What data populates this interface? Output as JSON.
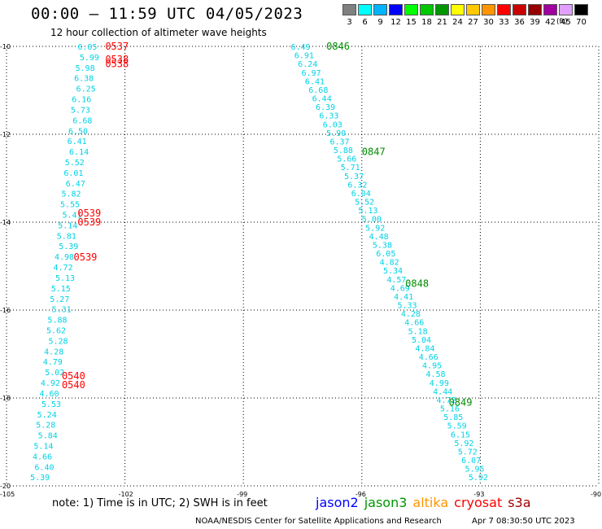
{
  "title": "00:00 — 11:59 UTC 04/05/2023",
  "subtitle": "12 hour collection of altimeter wave heights",
  "colorbar": {
    "unit": "(ft)",
    "stops": [
      {
        "label": "3",
        "color": "#808080"
      },
      {
        "label": "6",
        "color": "#00ffff"
      },
      {
        "label": "9",
        "color": "#00b4ff"
      },
      {
        "label": "12",
        "color": "#0000ff"
      },
      {
        "label": "15",
        "color": "#00ff00"
      },
      {
        "label": "18",
        "color": "#00c800"
      },
      {
        "label": "21",
        "color": "#009600"
      },
      {
        "label": "24",
        "color": "#ffff00"
      },
      {
        "label": "27",
        "color": "#ffc800"
      },
      {
        "label": "30",
        "color": "#ff9600"
      },
      {
        "label": "33",
        "color": "#ff0000"
      },
      {
        "label": "36",
        "color": "#c80000"
      },
      {
        "label": "39",
        "color": "#960000"
      },
      {
        "label": "42",
        "color": "#a000a0"
      },
      {
        "label": "45",
        "color": "#e0a0ff"
      },
      {
        "label": "70",
        "color": "#000000"
      }
    ]
  },
  "map": {
    "lon_range": [
      -105,
      -90
    ],
    "lat_range": [
      -20,
      -10
    ],
    "lon_ticks": [
      "-105",
      "-102",
      "-99",
      "-96",
      "-93",
      "-90"
    ],
    "lat_ticks": [
      "-10",
      "-12",
      "-14",
      "-16",
      "-18",
      "-20"
    ],
    "track_west": {
      "color": "#00d2e6",
      "values": [
        "6.05",
        "5.99",
        "5.98",
        "6.38",
        "6.25",
        "6.16",
        "5.73",
        "6.68",
        "6.50",
        "6.41",
        "6.14",
        "5.52",
        "6.01",
        "6.47",
        "5.82",
        "5.55",
        "5.41",
        "5.14",
        "5.81",
        "5.39",
        "4.98",
        "4.72",
        "5.13",
        "5.15",
        "5.27",
        "5.31",
        "5.88",
        "5.62",
        "5.28",
        "4.28",
        "4.79",
        "5.02",
        "4.92",
        "4.60",
        "5.53",
        "5.24",
        "5.28",
        "5.84",
        "5.14",
        "4.66",
        "6.40",
        "5.39"
      ]
    },
    "orbit_labels_west": {
      "color": "#ff0000",
      "labels": [
        "0537",
        "0538",
        "0538",
        "0539",
        "0539",
        "0539",
        "0540",
        "0540"
      ]
    },
    "track_east": {
      "color": "#00d2e6",
      "values": [
        "6.49",
        "6.91",
        "6.24",
        "6.97",
        "6.41",
        "6.68",
        "6.44",
        "6.39",
        "6.33",
        "6.03",
        "5.90",
        "6.37",
        "5.88",
        "5.66",
        "5.71",
        "5.37",
        "6.32",
        "6.04",
        "5.52",
        "5.13",
        "5.00",
        "5.92",
        "4.48",
        "5.38",
        "6.05",
        "4.82",
        "5.34",
        "4.57",
        "4.69",
        "4.41",
        "5.33",
        "4.28",
        "4.66",
        "5.18",
        "5.04",
        "4.84",
        "4.66",
        "4.95",
        "4.58",
        "4.99",
        "4.44",
        "4.72",
        "5.16",
        "5.85",
        "5.59",
        "6.15",
        "5.92",
        "5.72",
        "6.07",
        "5.95",
        "5.92"
      ]
    },
    "orbit_labels_east": {
      "color": "#008c00",
      "labels": [
        "0846",
        "0847",
        "0848",
        "0849"
      ]
    }
  },
  "note": "note:  1) Time is in UTC;  2) SWH is in feet",
  "satellites": [
    {
      "name": "jason2",
      "color": "#0000ff"
    },
    {
      "name": "jason3",
      "color": "#009600"
    },
    {
      "name": "altika",
      "color": "#ff9600"
    },
    {
      "name": "cryosat",
      "color": "#ff0000"
    },
    {
      "name": "s3a",
      "color": "#a00000"
    }
  ],
  "credit": "NOAA/NESDIS Center for Satellite Applications and Research",
  "timestamp": "Apr  7 08:30:50 UTC 2023"
}
